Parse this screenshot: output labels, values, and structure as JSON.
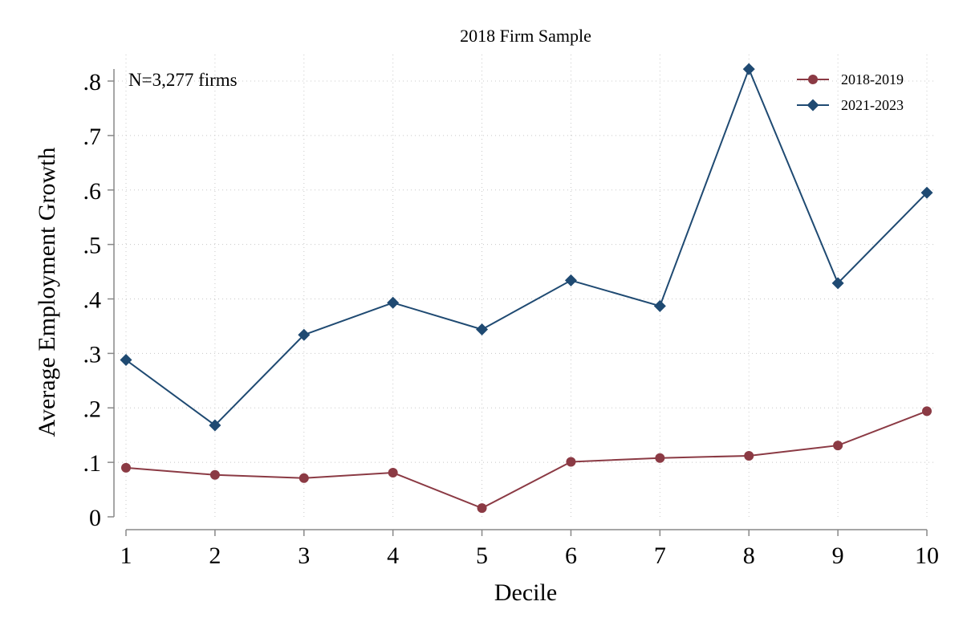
{
  "chart_data": {
    "type": "line",
    "title": "2018 Firm Sample",
    "xlabel": "Decile",
    "ylabel": "Average Employment Growth",
    "annotation": "N=3,277 firms",
    "x": [
      1,
      2,
      3,
      4,
      5,
      6,
      7,
      8,
      9,
      10
    ],
    "xticks": [
      "1",
      "2",
      "3",
      "4",
      "5",
      "6",
      "7",
      "8",
      "9",
      "10"
    ],
    "yticks": [
      {
        "value": 0,
        "label": "0"
      },
      {
        "value": 0.1,
        "label": ".1"
      },
      {
        "value": 0.2,
        "label": ".2"
      },
      {
        "value": 0.3,
        "label": ".3"
      },
      {
        "value": 0.4,
        "label": ".4"
      },
      {
        "value": 0.5,
        "label": ".5"
      },
      {
        "value": 0.6,
        "label": ".6"
      },
      {
        "value": 0.7,
        "label": ".7"
      },
      {
        "value": 0.8,
        "label": ".8"
      }
    ],
    "ylim": [
      0,
      0.82
    ],
    "xlim": [
      1,
      10
    ],
    "grid": true,
    "legend_position": "top-right",
    "series": [
      {
        "name": "2018-2019",
        "color": "#8B3A44",
        "marker": "circle",
        "values": [
          0.09,
          0.077,
          0.071,
          0.081,
          0.016,
          0.101,
          0.108,
          0.112,
          0.131,
          0.194
        ]
      },
      {
        "name": "2021-2023",
        "color": "#1F4A72",
        "marker": "diamond",
        "values": [
          0.288,
          0.168,
          0.334,
          0.393,
          0.344,
          0.434,
          0.387,
          0.822,
          0.429,
          0.595
        ]
      }
    ]
  }
}
